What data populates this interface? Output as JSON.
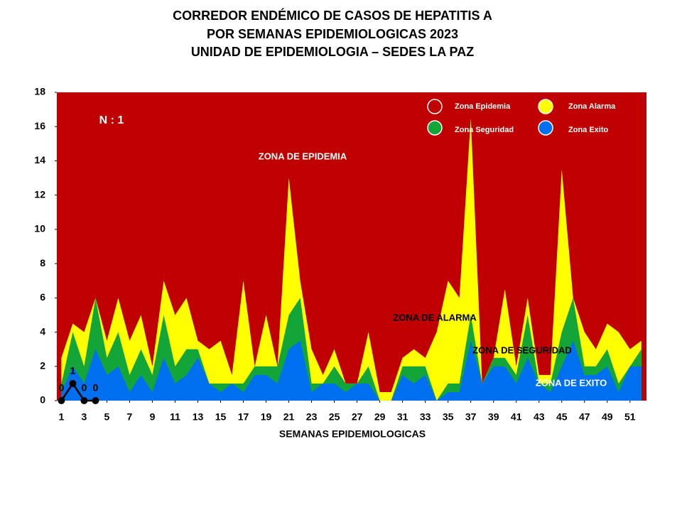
{
  "chart_data": {
    "type": "area",
    "title": [
      "CORREDOR ENDÉMICO DE CASOS DE HEPATITIS A",
      "POR SEMANAS EPIDEMIOLOGICAS 2023",
      "UNIDAD DE EPIDEMIOLOGIA – SEDES LA PAZ"
    ],
    "x_label": "SEMANAS EPIDEMIOLOGICAS",
    "annotations": [
      "N : 1",
      "ZONA DE EPIDEMIA",
      "ZONA DE ALARMA",
      "ZONA DE  SEGURIDAD",
      "ZONA DE  EXITO"
    ],
    "x": [
      1,
      2,
      3,
      4,
      5,
      6,
      7,
      8,
      9,
      10,
      11,
      12,
      13,
      14,
      15,
      16,
      17,
      18,
      19,
      20,
      21,
      22,
      23,
      24,
      25,
      26,
      27,
      28,
      29,
      30,
      31,
      32,
      33,
      34,
      35,
      36,
      37,
      38,
      39,
      40,
      41,
      42,
      43,
      44,
      45,
      46,
      47,
      48,
      49,
      50,
      51,
      52
    ],
    "series": [
      {
        "name": "Zona Epidemia",
        "color": "#c00000"
      },
      {
        "name": "Zona Alarma",
        "color": "#ffff00",
        "values": [
          2.5,
          4.5,
          4,
          6,
          3.5,
          6,
          3.5,
          5,
          2,
          7,
          5,
          6,
          3.5,
          3,
          3.5,
          1.5,
          7,
          2,
          5,
          2,
          13,
          7,
          3,
          1.5,
          3,
          1,
          1,
          4,
          0.5,
          0.5,
          2.5,
          3,
          2.5,
          4,
          7,
          6,
          16.5,
          1,
          2.5,
          6.5,
          2,
          6,
          1.5,
          1.5,
          13.5,
          6,
          4,
          3,
          4.5,
          4,
          3,
          3.5
        ]
      },
      {
        "name": "Zona Seguridad",
        "color": "#13a538",
        "values": [
          1,
          4,
          2,
          6,
          2.5,
          4,
          1.5,
          3,
          1.5,
          5,
          2,
          3,
          3,
          1,
          1,
          1,
          1,
          2,
          2,
          2,
          5,
          6,
          1,
          1,
          2,
          1,
          1,
          2,
          0,
          0,
          2,
          2,
          2,
          0,
          1,
          1,
          5,
          1,
          2.5,
          2.5,
          1.5,
          5,
          1,
          1,
          4,
          6,
          2,
          2,
          3,
          1,
          2,
          3
        ]
      },
      {
        "name": "Zona Exito",
        "color": "#0070f0",
        "values": [
          0.5,
          2,
          1,
          3,
          1.5,
          2,
          0.5,
          1.5,
          0.5,
          2.5,
          1,
          1.5,
          2.5,
          1,
          0.5,
          1,
          0.5,
          1.5,
          1.5,
          1,
          3,
          3.5,
          0.5,
          1,
          1,
          0.5,
          1,
          1,
          0,
          0,
          1.5,
          1,
          1.5,
          0,
          0.5,
          0.5,
          3.5,
          1,
          2,
          2,
          1,
          2.5,
          1,
          0.5,
          2,
          3.5,
          1.5,
          1.5,
          2,
          0.5,
          2,
          2
        ]
      }
    ],
    "cases": {
      "x": [
        1,
        2,
        3,
        4
      ],
      "values": [
        0,
        1,
        0,
        0
      ],
      "color": "#000000"
    },
    "xlim": [
      0.6,
      52.45
    ],
    "xticks": [
      1,
      3,
      5,
      7,
      9,
      11,
      13,
      15,
      17,
      19,
      21,
      23,
      25,
      27,
      29,
      31,
      33,
      35,
      37,
      39,
      41,
      43,
      45,
      47,
      49,
      51
    ],
    "ylim": [
      0,
      18
    ],
    "yticks": [
      0,
      2,
      4,
      6,
      8,
      10,
      12,
      14,
      16,
      18
    ]
  }
}
